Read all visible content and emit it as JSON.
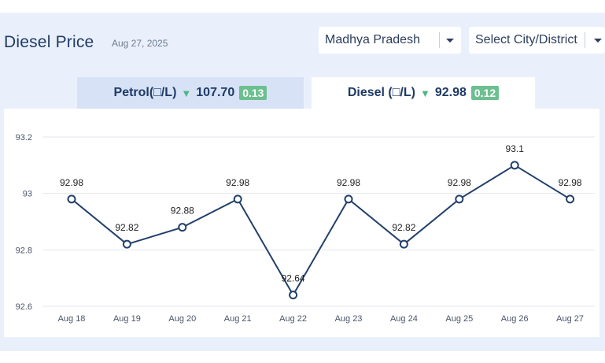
{
  "header": {
    "title": "Diesel Price",
    "date": "Aug 27, 2025"
  },
  "filters": {
    "state": "Madhya Pradesh",
    "city_placeholder": "Select City/District"
  },
  "tabs": [
    {
      "label": "Petrol(□/L)",
      "price": "107.70",
      "change": "0.13",
      "direction": "down"
    },
    {
      "label": "Diesel (□/L)",
      "price": "92.98",
      "change": "0.12",
      "direction": "down"
    }
  ],
  "colors": {
    "line": "#22406b",
    "grid": "#e3e6ec",
    "badge": "#6cbf8f",
    "down_arrow": "#4fb584"
  },
  "chart_data": {
    "type": "line",
    "categories": [
      "Aug 18",
      "Aug 19",
      "Aug 20",
      "Aug 21",
      "Aug 22",
      "Aug 23",
      "Aug 24",
      "Aug 25",
      "Aug 26",
      "Aug 27"
    ],
    "values": [
      92.98,
      92.82,
      92.88,
      92.98,
      92.64,
      92.98,
      92.82,
      92.98,
      93.1,
      92.98
    ],
    "data_labels": [
      "92.98",
      "92.82",
      "92.88",
      "92.98",
      "92.64",
      "92.98",
      "92.82",
      "92.98",
      "93.1",
      "92.98"
    ],
    "y_ticks": [
      92.6,
      92.8,
      93,
      93.2
    ],
    "y_tick_labels": [
      "92.6",
      "92.8",
      "93",
      "93.2"
    ],
    "ylim": [
      92.6,
      93.2
    ],
    "grid": true,
    "legend": false
  }
}
